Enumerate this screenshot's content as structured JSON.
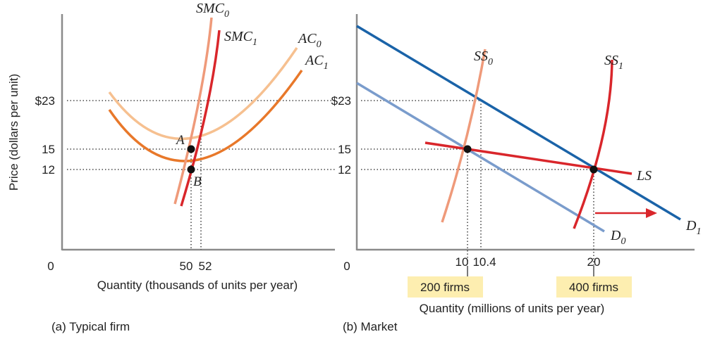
{
  "panel_a": {
    "caption": "(a) Typical firm",
    "ylabel": "Price (dollars per unit)",
    "xlabel": "Quantity (thousands of units per year)",
    "origin": "0",
    "y_ticks": [
      "$23",
      "15",
      "12"
    ],
    "x_ticks": [
      "50",
      "52"
    ],
    "curves": {
      "smc0": {
        "base": "SMC",
        "sub": "0"
      },
      "smc1": {
        "base": "SMC",
        "sub": "1"
      },
      "ac0": {
        "base": "AC",
        "sub": "0"
      },
      "ac1": {
        "base": "AC",
        "sub": "1"
      }
    },
    "points": {
      "a": "A",
      "b": "B"
    }
  },
  "panel_b": {
    "caption": "(b) Market",
    "xlabel": "Quantity (millions of units per year)",
    "origin": "0",
    "y_ticks": [
      "$23",
      "15",
      "12"
    ],
    "x_ticks": [
      "10",
      "10.4",
      "20"
    ],
    "firm_labels": [
      "200 firms",
      "400 firms"
    ],
    "curves": {
      "ss0": {
        "base": "SS",
        "sub": "0"
      },
      "ss1": {
        "base": "SS",
        "sub": "1"
      },
      "d0": {
        "base": "D",
        "sub": "0"
      },
      "d1": {
        "base": "D",
        "sub": "1"
      },
      "ls": "LS"
    }
  },
  "colors": {
    "smc0": "#ef9a7a",
    "smc1": "#d9262b",
    "ac0": "#f6c090",
    "ac1": "#e8782a",
    "d0": "#7a9ccc",
    "d1": "#1a63a8",
    "ls": "#d9262b",
    "arrow": "#d9262b",
    "highlight": "#fdeeb0"
  }
}
